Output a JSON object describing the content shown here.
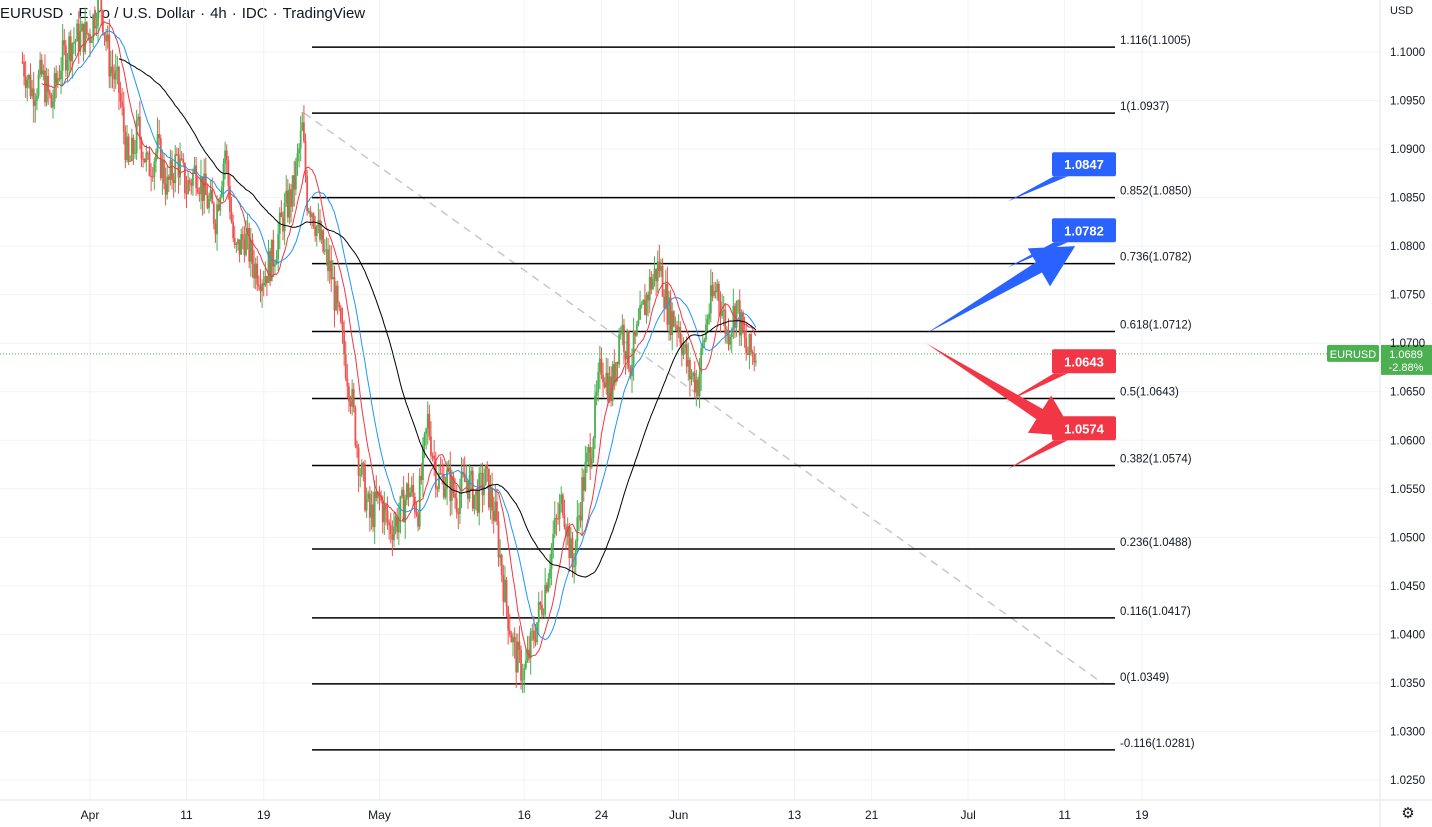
{
  "header": {
    "symbol": "EURUSD",
    "description": "Euro / U.S. Dollar",
    "interval": "4h",
    "exchange": "IDC",
    "source": "TradingView",
    "currency": "USD"
  },
  "colors": {
    "up": "#26a69a",
    "up_candle": "#4caf50",
    "down": "#ef5350",
    "blue_callout": "#2962ff",
    "red_callout": "#f23645",
    "price_badge": "#4caf50",
    "ma_fast": "#f23645",
    "ma_mid": "#2196f3",
    "ma_slow": "#000000",
    "grid": "#f0f3fa",
    "fib_line": "#000000",
    "trend_dashed": "#c8c8c8"
  },
  "chart_data": {
    "type": "candlestick",
    "y_axis": {
      "min": 1.022,
      "max": 1.1045,
      "ticks": [
        "1.1000",
        "1.0950",
        "1.0900",
        "1.0850",
        "1.0800",
        "1.0750",
        "1.0700",
        "1.0650",
        "1.0600",
        "1.0550",
        "1.0500",
        "1.0450",
        "1.0400",
        "1.0350",
        "1.0300",
        "1.0250"
      ]
    },
    "x_axis": {
      "ticks": [
        {
          "label": "Apr",
          "day": 0
        },
        {
          "label": "11",
          "day": 10
        },
        {
          "label": "19",
          "day": 18
        },
        {
          "label": "May",
          "day": 30
        },
        {
          "label": "16",
          "day": 45
        },
        {
          "label": "24",
          "day": 53
        },
        {
          "label": "Jun",
          "day": 61
        },
        {
          "label": "13",
          "day": 73
        },
        {
          "label": "21",
          "day": 81
        },
        {
          "label": "Jul",
          "day": 91
        },
        {
          "label": "11",
          "day": 101
        },
        {
          "label": "19",
          "day": 109
        }
      ]
    },
    "last_price": {
      "symbol": "EURUSD",
      "price": "1.0689",
      "change": "-2.88%",
      "value": 1.0689
    },
    "fibonacci": {
      "start_day": 22,
      "end_day": 104,
      "levels": [
        {
          "label": "1.116(1.1005)",
          "price": 1.1005
        },
        {
          "label": "1(1.0937)",
          "price": 1.0937
        },
        {
          "label": "0.852(1.0850)",
          "price": 1.085
        },
        {
          "label": "0.736(1.0782)",
          "price": 1.0782
        },
        {
          "label": "0.618(1.0712)",
          "price": 1.0712
        },
        {
          "label": "0.5(1.0643)",
          "price": 1.0643
        },
        {
          "label": "0.382(1.0574)",
          "price": 1.0574
        },
        {
          "label": "0.236(1.0488)",
          "price": 1.0488
        },
        {
          "label": "0.116(1.0417)",
          "price": 1.0417
        },
        {
          "label": "0(1.0349)",
          "price": 1.0349
        },
        {
          "label": "-0.116(1.0281)",
          "price": 1.0281
        }
      ]
    },
    "trendline": {
      "from": {
        "day": 22,
        "price": 1.0937
      },
      "to": {
        "day": 104,
        "price": 1.0349
      }
    },
    "callouts": [
      {
        "text": "1.0847",
        "color": "blue",
        "price": 1.0872,
        "anchor_price": 1.085,
        "anchor_day": 96.5
      },
      {
        "text": "1.0782",
        "color": "blue",
        "price": 1.0804,
        "anchor_price": 1.0782,
        "anchor_day": 96.5
      },
      {
        "text": "1.0643",
        "color": "red",
        "price": 1.0669,
        "anchor_price": 1.0643,
        "anchor_day": 96.3
      },
      {
        "text": "1.0574",
        "color": "red",
        "price": 1.06,
        "anchor_price": 1.0574,
        "anchor_day": 96.5
      }
    ],
    "arrows": [
      {
        "color": "blue",
        "direction": "up",
        "from": {
          "day": 77,
          "price": 1.071
        },
        "to": {
          "day": 91,
          "price": 1.08
        }
      },
      {
        "color": "red",
        "direction": "down",
        "from": {
          "day": 77,
          "price": 1.07
        },
        "to": {
          "day": 91,
          "price": 1.0604
        }
      }
    ],
    "path_points": [
      {
        "day": -7,
        "price": 1.099
      },
      {
        "day": -6,
        "price": 1.096
      },
      {
        "day": -5,
        "price": 1.0975
      },
      {
        "day": -4,
        "price": 1.0945
      },
      {
        "day": -3,
        "price": 1.099
      },
      {
        "day": -2,
        "price": 1.101
      },
      {
        "day": 0,
        "price": 1.102
      },
      {
        "day": 1,
        "price": 1.106
      },
      {
        "day": 2,
        "price": 1.099
      },
      {
        "day": 3,
        "price": 1.096
      },
      {
        "day": 4,
        "price": 1.088
      },
      {
        "day": 5,
        "price": 1.092
      },
      {
        "day": 6,
        "price": 1.088
      },
      {
        "day": 7,
        "price": 1.09
      },
      {
        "day": 8,
        "price": 1.086
      },
      {
        "day": 9,
        "price": 1.089
      },
      {
        "day": 10,
        "price": 1.086
      },
      {
        "day": 11,
        "price": 1.088
      },
      {
        "day": 12,
        "price": 1.085
      },
      {
        "day": 13,
        "price": 1.083
      },
      {
        "day": 14,
        "price": 1.09
      },
      {
        "day": 15,
        "price": 1.079
      },
      {
        "day": 16,
        "price": 1.081
      },
      {
        "day": 17,
        "price": 1.078
      },
      {
        "day": 18,
        "price": 1.077
      },
      {
        "day": 19,
        "price": 1.079
      },
      {
        "day": 20,
        "price": 1.083
      },
      {
        "day": 21,
        "price": 1.0855
      },
      {
        "day": 22,
        "price": 1.092
      },
      {
        "day": 22.5,
        "price": 1.085
      },
      {
        "day": 23,
        "price": 1.084
      },
      {
        "day": 24,
        "price": 1.08
      },
      {
        "day": 25,
        "price": 1.077
      },
      {
        "day": 26,
        "price": 1.071
      },
      {
        "day": 27,
        "price": 1.065
      },
      {
        "day": 28,
        "price": 1.057
      },
      {
        "day": 29,
        "price": 1.052
      },
      {
        "day": 30,
        "price": 1.054
      },
      {
        "day": 31,
        "price": 1.051
      },
      {
        "day": 32,
        "price": 1.052
      },
      {
        "day": 33,
        "price": 1.055
      },
      {
        "day": 34,
        "price": 1.053
      },
      {
        "day": 35,
        "price": 1.062
      },
      {
        "day": 36,
        "price": 1.056
      },
      {
        "day": 37,
        "price": 1.056
      },
      {
        "day": 38,
        "price": 1.054
      },
      {
        "day": 39,
        "price": 1.056
      },
      {
        "day": 40,
        "price": 1.054
      },
      {
        "day": 41,
        "price": 1.056
      },
      {
        "day": 42,
        "price": 1.052
      },
      {
        "day": 43,
        "price": 1.044
      },
      {
        "day": 44,
        "price": 1.038
      },
      {
        "day": 45,
        "price": 1.036
      },
      {
        "day": 46,
        "price": 1.04
      },
      {
        "day": 47,
        "price": 1.044
      },
      {
        "day": 48,
        "price": 1.05
      },
      {
        "day": 49,
        "price": 1.054
      },
      {
        "day": 50,
        "price": 1.047
      },
      {
        "day": 51,
        "price": 1.055
      },
      {
        "day": 52,
        "price": 1.06
      },
      {
        "day": 53,
        "price": 1.068
      },
      {
        "day": 54,
        "price": 1.065
      },
      {
        "day": 55,
        "price": 1.072
      },
      {
        "day": 56,
        "price": 1.068
      },
      {
        "day": 57,
        "price": 1.072
      },
      {
        "day": 58,
        "price": 1.076
      },
      {
        "day": 59,
        "price": 1.078
      },
      {
        "day": 60,
        "price": 1.073
      },
      {
        "day": 61,
        "price": 1.072
      },
      {
        "day": 62,
        "price": 1.067
      },
      {
        "day": 63,
        "price": 1.066
      },
      {
        "day": 64,
        "price": 1.073
      },
      {
        "day": 65,
        "price": 1.076
      },
      {
        "day": 66,
        "price": 1.071
      },
      {
        "day": 67,
        "price": 1.074
      },
      {
        "day": 68,
        "price": 1.069
      },
      {
        "day": 69,
        "price": 1.0689
      }
    ]
  },
  "toolbar": {
    "settings_icon": "gear-icon"
  }
}
